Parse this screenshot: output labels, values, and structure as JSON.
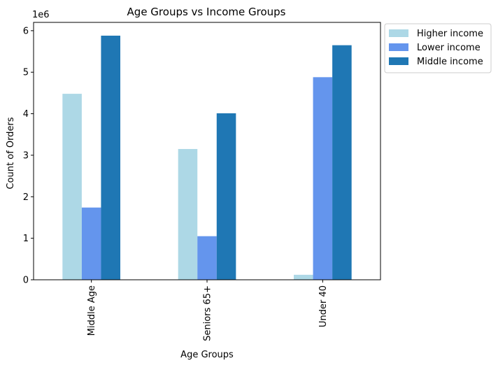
{
  "chart_data": {
    "type": "bar",
    "title": "Age Groups vs Income Groups",
    "xlabel": "Age Groups",
    "ylabel": "Count of Orders",
    "y_offset_label": "1e6",
    "y_scale": 1000000,
    "categories": [
      "Middle Age",
      "Seniors 65+",
      "Under 40"
    ],
    "series": [
      {
        "name": "Higher income",
        "color": "#add8e6",
        "values": [
          4480000,
          3150000,
          120000
        ]
      },
      {
        "name": "Lower income",
        "color": "#6495ed",
        "values": [
          1740000,
          1050000,
          4880000
        ]
      },
      {
        "name": "Middle income",
        "color": "#1f77b4",
        "values": [
          5880000,
          4010000,
          5650000
        ]
      }
    ],
    "ylim": [
      0,
      6200000
    ],
    "yticks": [
      0,
      1,
      2,
      3,
      4,
      5,
      6
    ],
    "grid": false,
    "legend_position": "outside-top-right"
  }
}
